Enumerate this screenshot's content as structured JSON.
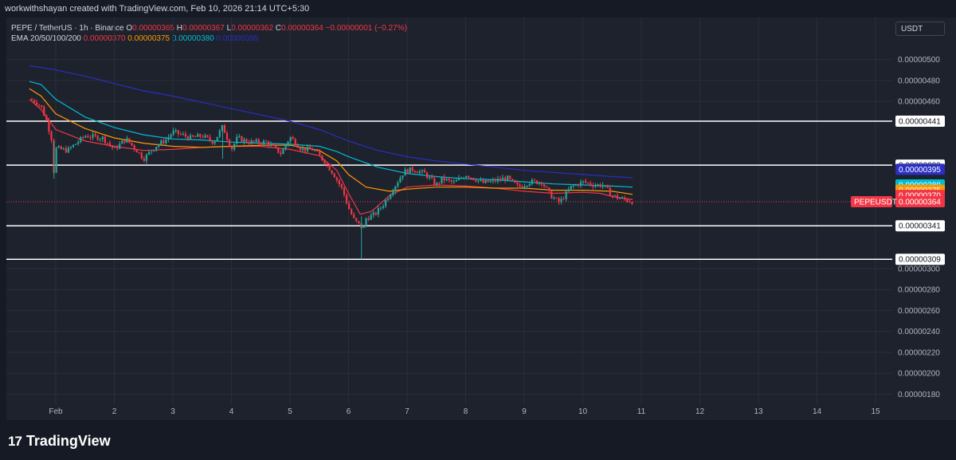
{
  "header": {
    "credit": "workwithshayan created with TradingView.com, Feb 10, 2026 21:14 UTC+5:30"
  },
  "legend": {
    "symbol": "PEPE / TetherUS · 1h · Binance",
    "o_label": "O",
    "o_value": "0.00000365",
    "h_label": "H",
    "h_value": "0.00000367",
    "l_label": "L",
    "l_value": "0.00000362",
    "c_label": "C",
    "c_value": "0.00000364",
    "change": "−0.00000001 (−0.27%)",
    "ema_label": "EMA 20/50/100/200",
    "ema20": "0.00000370",
    "ema50": "0.00000375",
    "ema100": "0.00000380",
    "ema200": "0.00000395"
  },
  "currency_button": "USDT",
  "footer": {
    "logo_text": "TradingView",
    "logo_mark": "17"
  },
  "colors": {
    "up": "#26a69a",
    "down": "#f23645",
    "ema20": "#f23645",
    "ema50": "#ff9800",
    "ema100": "#00bcd4",
    "ema200": "#2a2ec1",
    "level": "#ffffff"
  },
  "chart_data": {
    "type": "candlestick",
    "symbol": "PEPEUSDT",
    "timeframe": "1h",
    "y_ticks": [
      "0.00000500",
      "0.00000480",
      "0.00000460",
      "0.00000300",
      "0.00000280",
      "0.00000260",
      "0.00000240",
      "0.00000220",
      "0.00000200",
      "0.00000180"
    ],
    "x_ticks": [
      {
        "label": "Feb",
        "day": 1
      },
      {
        "label": "2",
        "day": 2
      },
      {
        "label": "3",
        "day": 3
      },
      {
        "label": "4",
        "day": 4
      },
      {
        "label": "5",
        "day": 5
      },
      {
        "label": "6",
        "day": 6
      },
      {
        "label": "7",
        "day": 7
      },
      {
        "label": "8",
        "day": 8
      },
      {
        "label": "9",
        "day": 9
      },
      {
        "label": "10",
        "day": 10
      },
      {
        "label": "11",
        "day": 11
      },
      {
        "label": "12",
        "day": 12
      },
      {
        "label": "13",
        "day": 13
      },
      {
        "label": "14",
        "day": 14
      },
      {
        "label": "15",
        "day": 15
      }
    ],
    "horizontal_levels": [
      {
        "label": "0.00000441",
        "value": 4.41e-06
      },
      {
        "label": "0.00000399",
        "value": 3.99e-06
      },
      {
        "label": "0.00000341",
        "value": 3.41e-06
      },
      {
        "label": "0.00000309",
        "value": 3.09e-06
      }
    ],
    "price_tags": [
      {
        "label": "0.00000395",
        "value": 3.95e-06,
        "color": "#2a2ec1"
      },
      {
        "label": "0.00000380",
        "value": 3.8e-06,
        "color": "#00bcd4"
      },
      {
        "label": "0.00000375",
        "value": 3.75e-06,
        "color": "#ff9800"
      },
      {
        "label": "0.00000370",
        "value": 3.7e-06,
        "color": "#f23645"
      },
      {
        "label": "0.00000364",
        "value": 3.64e-06,
        "color": "#f23645"
      }
    ],
    "last_price_label": "PEPEUSDT",
    "last_price": 3.64e-06,
    "ema_series": [
      {
        "name": "EMA 20",
        "color": "#f23645",
        "points": [
          [
            0.55,
            4.62
          ],
          [
            0.75,
            4.52
          ],
          [
            1.0,
            4.33
          ],
          [
            1.5,
            4.22
          ],
          [
            2.0,
            4.17
          ],
          [
            2.5,
            4.13
          ],
          [
            3.0,
            4.14
          ],
          [
            3.5,
            4.16
          ],
          [
            4.0,
            4.17
          ],
          [
            4.5,
            4.17
          ],
          [
            5.0,
            4.14
          ],
          [
            5.5,
            4.08
          ],
          [
            5.8,
            3.94
          ],
          [
            6.0,
            3.72
          ],
          [
            6.2,
            3.52
          ],
          [
            6.4,
            3.55
          ],
          [
            6.7,
            3.7
          ],
          [
            7.0,
            3.78
          ],
          [
            7.5,
            3.8
          ],
          [
            8.0,
            3.79
          ],
          [
            8.5,
            3.77
          ],
          [
            9.0,
            3.74
          ],
          [
            9.5,
            3.72
          ],
          [
            10.0,
            3.73
          ],
          [
            10.3,
            3.72
          ],
          [
            10.5,
            3.69
          ],
          [
            10.85,
            3.66
          ]
        ]
      },
      {
        "name": "EMA 50",
        "color": "#ff9800",
        "points": [
          [
            0.55,
            4.72
          ],
          [
            0.75,
            4.65
          ],
          [
            1.0,
            4.48
          ],
          [
            1.5,
            4.34
          ],
          [
            2.0,
            4.25
          ],
          [
            2.5,
            4.2
          ],
          [
            3.0,
            4.17
          ],
          [
            3.5,
            4.16
          ],
          [
            4.0,
            4.17
          ],
          [
            4.5,
            4.18
          ],
          [
            5.0,
            4.18
          ],
          [
            5.5,
            4.13
          ],
          [
            5.8,
            4.03
          ],
          [
            6.0,
            3.9
          ],
          [
            6.3,
            3.78
          ],
          [
            6.7,
            3.74
          ],
          [
            7.0,
            3.76
          ],
          [
            7.5,
            3.78
          ],
          [
            8.0,
            3.78
          ],
          [
            8.5,
            3.77
          ],
          [
            9.0,
            3.77
          ],
          [
            9.5,
            3.75
          ],
          [
            10.0,
            3.75
          ],
          [
            10.5,
            3.74
          ],
          [
            10.85,
            3.71
          ]
        ]
      },
      {
        "name": "EMA 100",
        "color": "#00bcd4",
        "points": [
          [
            0.55,
            4.79
          ],
          [
            0.75,
            4.76
          ],
          [
            1.0,
            4.62
          ],
          [
            1.5,
            4.45
          ],
          [
            2.0,
            4.35
          ],
          [
            2.5,
            4.28
          ],
          [
            3.0,
            4.24
          ],
          [
            3.5,
            4.23
          ],
          [
            4.0,
            4.21
          ],
          [
            4.5,
            4.2
          ],
          [
            5.0,
            4.19
          ],
          [
            5.5,
            4.17
          ],
          [
            5.8,
            4.12
          ],
          [
            6.0,
            4.07
          ],
          [
            6.5,
            3.97
          ],
          [
            7.0,
            3.91
          ],
          [
            7.5,
            3.88
          ],
          [
            8.0,
            3.86
          ],
          [
            8.5,
            3.85
          ],
          [
            9.0,
            3.83
          ],
          [
            9.5,
            3.81
          ],
          [
            10.0,
            3.8
          ],
          [
            10.5,
            3.79
          ],
          [
            10.85,
            3.78
          ]
        ]
      },
      {
        "name": "EMA 200",
        "color": "#2a2ec1",
        "points": [
          [
            0.55,
            4.94
          ],
          [
            1.0,
            4.9
          ],
          [
            1.5,
            4.84
          ],
          [
            2.0,
            4.77
          ],
          [
            2.5,
            4.7
          ],
          [
            3.0,
            4.65
          ],
          [
            3.5,
            4.59
          ],
          [
            4.0,
            4.53
          ],
          [
            4.5,
            4.47
          ],
          [
            5.0,
            4.41
          ],
          [
            5.5,
            4.33
          ],
          [
            6.0,
            4.22
          ],
          [
            6.5,
            4.13
          ],
          [
            7.0,
            4.07
          ],
          [
            7.5,
            4.03
          ],
          [
            8.0,
            4.0
          ],
          [
            8.5,
            3.97
          ],
          [
            9.0,
            3.94
          ],
          [
            9.5,
            3.92
          ],
          [
            10.0,
            3.9
          ],
          [
            10.5,
            3.88
          ],
          [
            10.85,
            3.87
          ]
        ]
      }
    ],
    "price_path": [
      [
        0.55,
        4.62
      ],
      [
        0.65,
        4.6
      ],
      [
        0.75,
        4.55
      ],
      [
        0.85,
        4.4
      ],
      [
        0.95,
        4.2
      ],
      [
        0.97,
        3.88
      ],
      [
        1.0,
        4.15
      ],
      [
        1.2,
        4.13
      ],
      [
        1.5,
        4.27
      ],
      [
        1.8,
        4.25
      ],
      [
        2.0,
        4.14
      ],
      [
        2.2,
        4.24
      ],
      [
        2.4,
        4.12
      ],
      [
        2.5,
        4.05
      ],
      [
        2.7,
        4.17
      ],
      [
        2.9,
        4.24
      ],
      [
        3.0,
        4.31
      ],
      [
        3.3,
        4.25
      ],
      [
        3.5,
        4.27
      ],
      [
        3.7,
        4.21
      ],
      [
        3.85,
        4.36
      ],
      [
        4.0,
        4.14
      ],
      [
        4.1,
        4.25
      ],
      [
        4.3,
        4.21
      ],
      [
        4.6,
        4.21
      ],
      [
        4.85,
        4.1
      ],
      [
        5.0,
        4.26
      ],
      [
        5.2,
        4.14
      ],
      [
        5.4,
        4.14
      ],
      [
        5.6,
        4.02
      ],
      [
        5.75,
        3.9
      ],
      [
        5.9,
        3.75
      ],
      [
        6.0,
        3.58
      ],
      [
        6.1,
        3.46
      ],
      [
        6.2,
        3.41
      ],
      [
        6.25,
        3.38
      ],
      [
        6.3,
        3.48
      ],
      [
        6.45,
        3.52
      ],
      [
        6.6,
        3.62
      ],
      [
        6.8,
        3.8
      ],
      [
        6.95,
        3.93
      ],
      [
        7.1,
        3.95
      ],
      [
        7.3,
        3.91
      ],
      [
        7.5,
        3.8
      ],
      [
        7.6,
        3.86
      ],
      [
        7.8,
        3.82
      ],
      [
        8.0,
        3.9
      ],
      [
        8.3,
        3.82
      ],
      [
        8.5,
        3.84
      ],
      [
        8.7,
        3.87
      ],
      [
        8.9,
        3.78
      ],
      [
        9.1,
        3.83
      ],
      [
        9.3,
        3.83
      ],
      [
        9.45,
        3.7
      ],
      [
        9.6,
        3.63
      ],
      [
        9.8,
        3.78
      ],
      [
        10.0,
        3.83
      ],
      [
        10.2,
        3.8
      ],
      [
        10.35,
        3.8
      ],
      [
        10.5,
        3.7
      ],
      [
        10.65,
        3.67
      ],
      [
        10.85,
        3.64
      ]
    ],
    "wicks": [
      {
        "day": 6.22,
        "low": 3.09,
        "high": 3.5
      },
      {
        "day": 0.97,
        "low": 3.86,
        "high": 4.22
      },
      {
        "day": 3.85,
        "low": 4.05,
        "high": 4.37
      }
    ]
  }
}
